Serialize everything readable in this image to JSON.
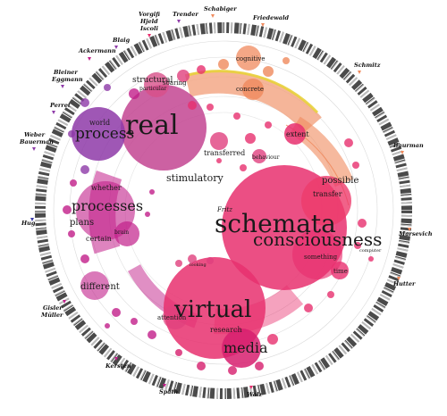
{
  "authors": [
    {
      "id": "vorgiti",
      "lines": [
        "Vorgifi",
        "Hjeld",
        "Iscoli"
      ]
    },
    {
      "id": "trender",
      "lines": [
        "Trender"
      ]
    },
    {
      "id": "schabiger",
      "lines": [
        "Schabiger"
      ]
    },
    {
      "id": "friedewald",
      "lines": [
        "Friedewald"
      ]
    },
    {
      "id": "blaig",
      "lines": [
        "Blaig"
      ]
    },
    {
      "id": "ackermann",
      "lines": [
        "Ackermann"
      ]
    },
    {
      "id": "schmitz",
      "lines": [
        "Schmitz"
      ]
    },
    {
      "id": "bleiner",
      "lines": [
        "Bleiner",
        "Eggmann"
      ]
    },
    {
      "id": "perret",
      "lines": [
        "Perret"
      ]
    },
    {
      "id": "weber",
      "lines": [
        "Weber",
        "Bauerman"
      ]
    },
    {
      "id": "baurman",
      "lines": [
        "Baurman"
      ]
    },
    {
      "id": "hug",
      "lines": [
        "Hug"
      ]
    },
    {
      "id": "marsevich",
      "lines": [
        "Marsevich"
      ]
    },
    {
      "id": "hutter",
      "lines": [
        "Hutter"
      ]
    },
    {
      "id": "gisler",
      "lines": [
        "Gisler",
        "Müller"
      ]
    },
    {
      "id": "kersten",
      "lines": [
        "Kersten"
      ]
    },
    {
      "id": "spath",
      "lines": [
        "Späth"
      ]
    },
    {
      "id": "walz",
      "lines": [
        "Walz"
      ]
    }
  ],
  "words": {
    "real": "real",
    "process": "process",
    "processes": "processes",
    "schemata": "schemata",
    "consciousness": "consciousness",
    "virtual": "virtual",
    "media": "media",
    "stimulatory": "stimulatory",
    "possible": "possible",
    "transfer": "transfer",
    "transferred": "transferred",
    "structural": "structural",
    "particular": "particular",
    "soaring": "soaring",
    "world": "world",
    "concrete": "concrete",
    "extent": "extent",
    "cognitive": "cognitive",
    "behaviour": "behaviour",
    "different": "different",
    "brain": "brain",
    "whether": "whether",
    "plans": "plans",
    "certain": "certain",
    "something": "something",
    "time": "time",
    "attention": "attention",
    "research": "research",
    "fritz": "Fritz",
    "computer": "computer",
    "lookup": "looking"
  },
  "colors": {
    "pink": "#e8306f",
    "magenta": "#c21f8a",
    "purple": "#8e3aa8",
    "orange": "#f08a5d",
    "salmon": "#f3a27f",
    "yellow": "#e8d23c"
  }
}
